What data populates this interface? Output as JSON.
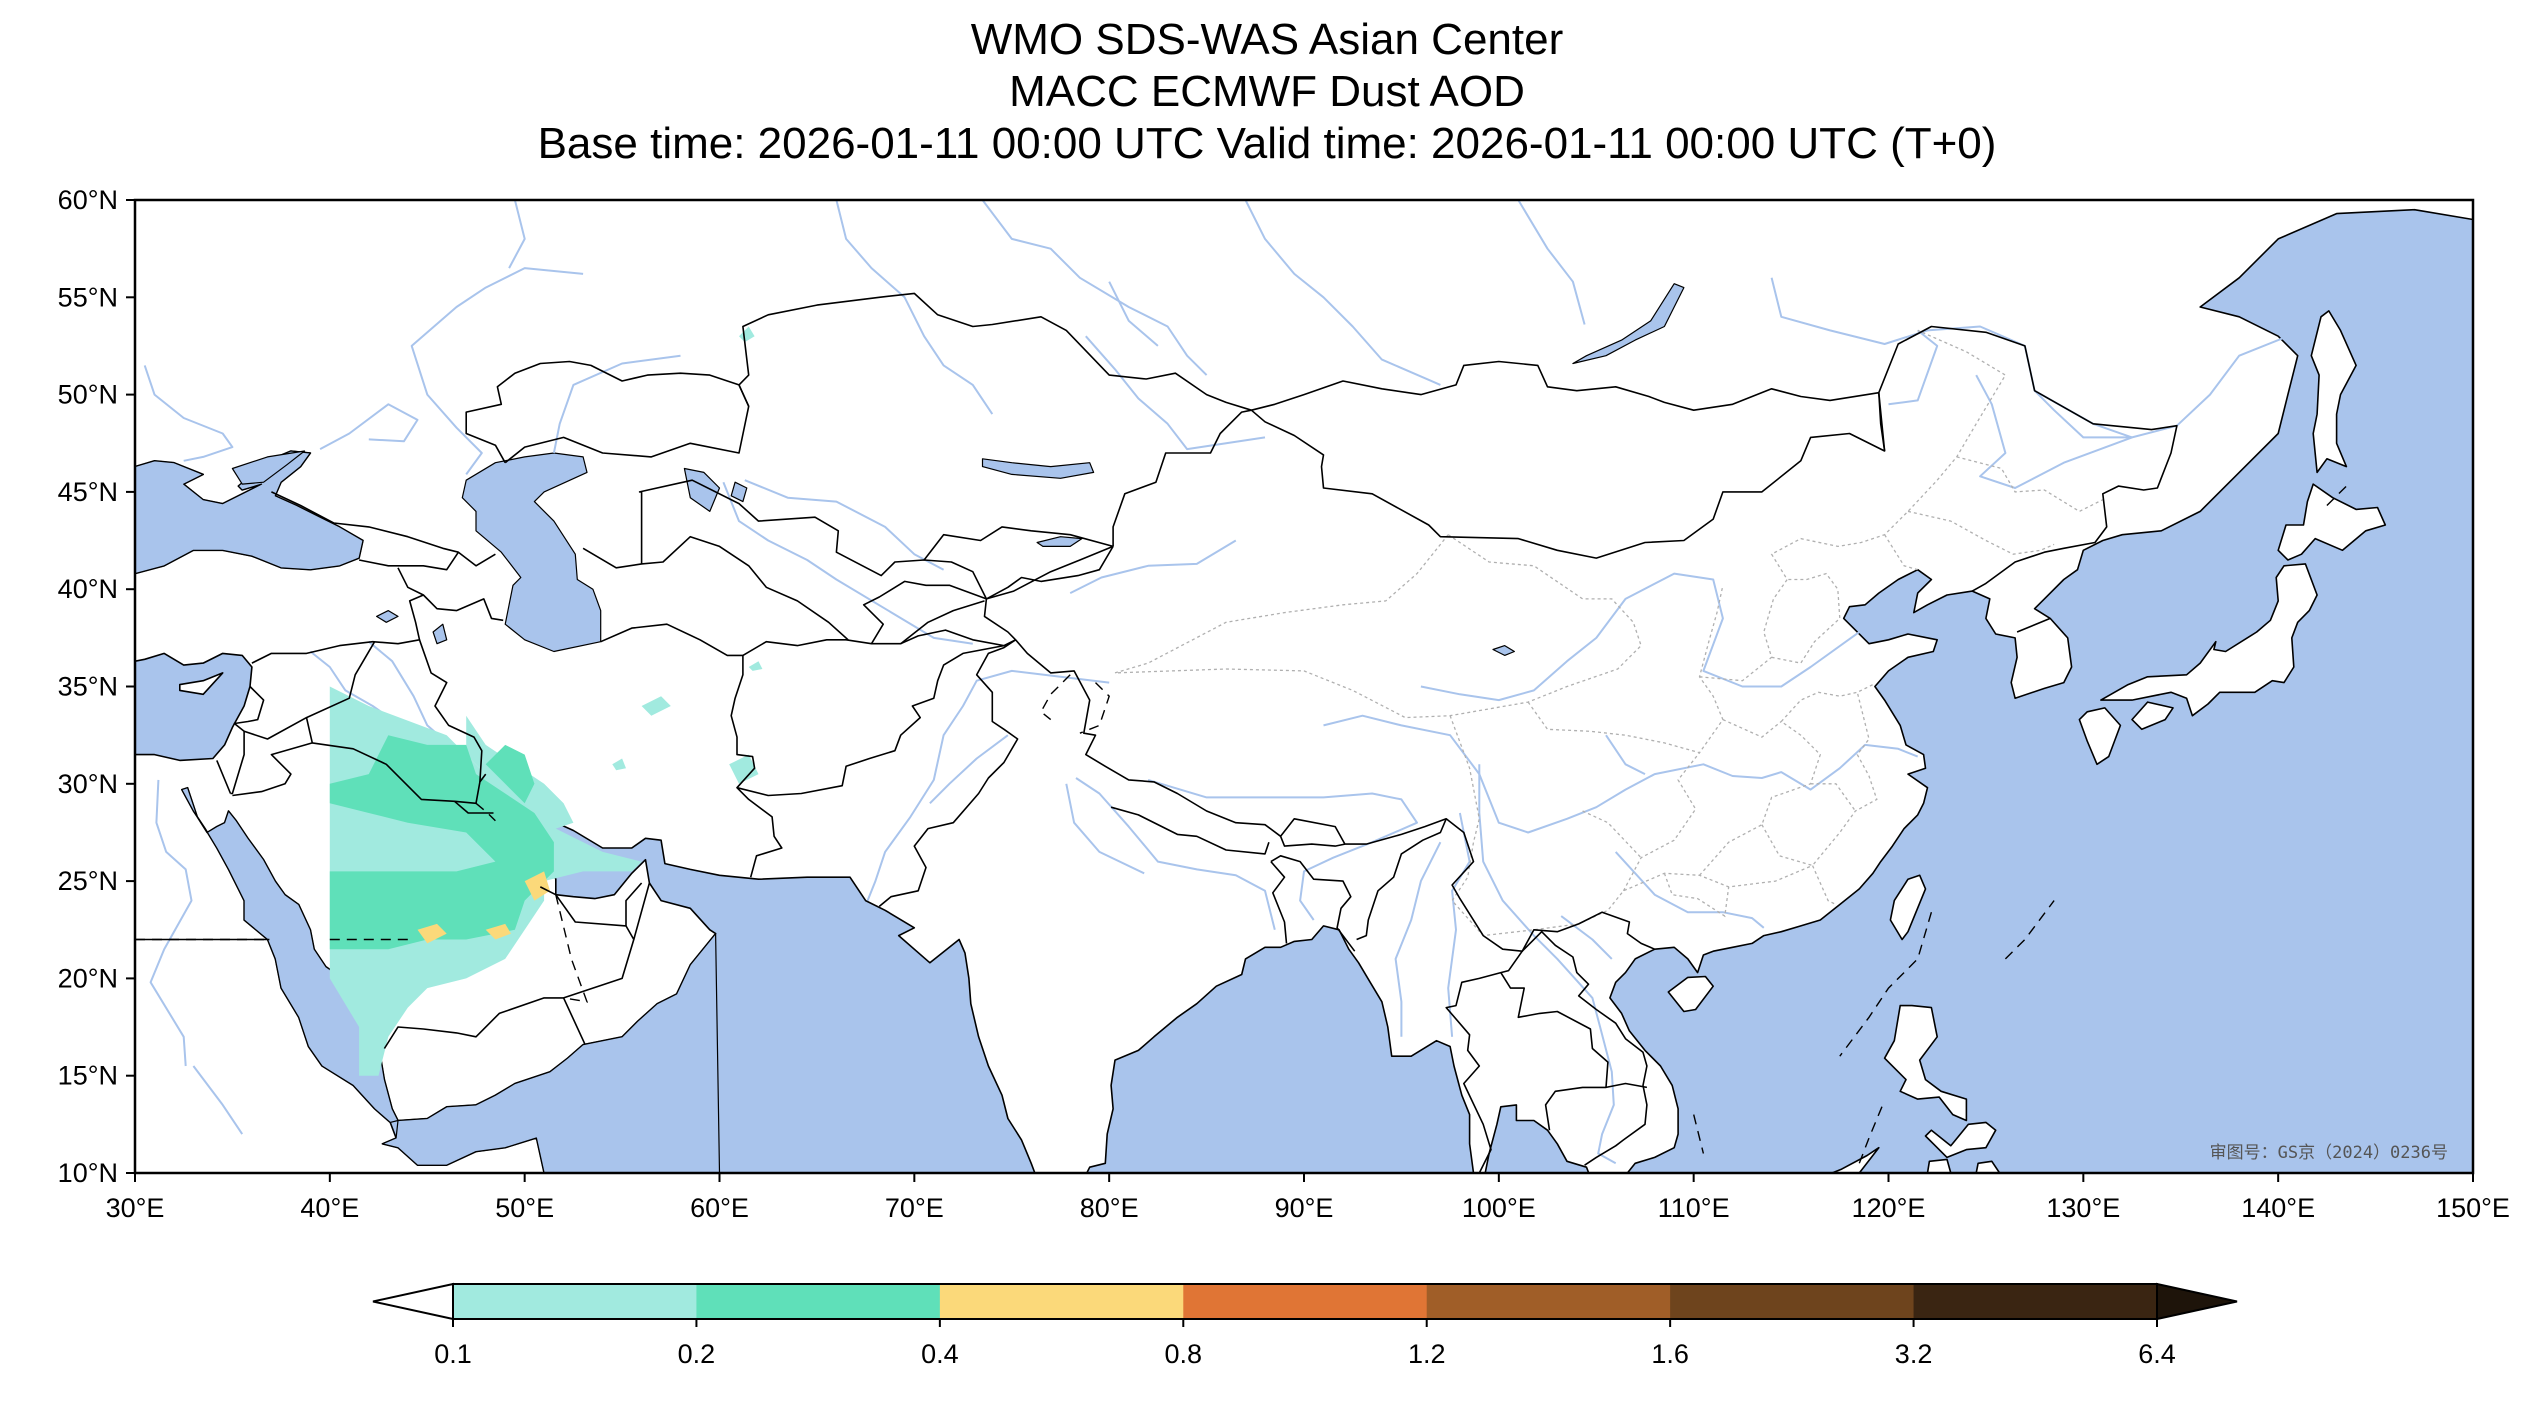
{
  "title": {
    "line1": "WMO SDS-WAS Asian Center",
    "line2": "MACC ECMWF Dust AOD",
    "line3": "Base time: 2026-01-11 00:00 UTC Valid time: 2026-01-11 00:00 UTC (T+0)"
  },
  "map": {
    "lon_range": [
      30,
      150
    ],
    "lat_range": [
      10,
      60
    ],
    "lon_ticks": [
      {
        "value": 30,
        "label": "30°E"
      },
      {
        "value": 40,
        "label": "40°E"
      },
      {
        "value": 50,
        "label": "50°E"
      },
      {
        "value": 60,
        "label": "60°E"
      },
      {
        "value": 70,
        "label": "70°E"
      },
      {
        "value": 80,
        "label": "80°E"
      },
      {
        "value": 90,
        "label": "90°E"
      },
      {
        "value": 100,
        "label": "100°E"
      },
      {
        "value": 110,
        "label": "110°E"
      },
      {
        "value": 120,
        "label": "120°E"
      },
      {
        "value": 130,
        "label": "130°E"
      },
      {
        "value": 140,
        "label": "140°E"
      },
      {
        "value": 150,
        "label": "150°E"
      }
    ],
    "lat_ticks": [
      {
        "value": 60,
        "label": "60°N"
      },
      {
        "value": 55,
        "label": "55°N"
      },
      {
        "value": 50,
        "label": "50°N"
      },
      {
        "value": 45,
        "label": "45°N"
      },
      {
        "value": 40,
        "label": "40°N"
      },
      {
        "value": 35,
        "label": "35°N"
      },
      {
        "value": 30,
        "label": "30°N"
      },
      {
        "value": 25,
        "label": "25°N"
      },
      {
        "value": 20,
        "label": "20°N"
      },
      {
        "value": 15,
        "label": "15°N"
      },
      {
        "value": 10,
        "label": "10°N"
      }
    ],
    "stamp": "审图号：GS京（2024）0236号",
    "colors": {
      "ocean": "#a9c4ec",
      "land": "#ffffff",
      "border": "#000000",
      "river": "#a9c4ec",
      "province": "#b0b0b0"
    }
  },
  "colorbar": {
    "levels": [
      "0.1",
      "0.2",
      "0.4",
      "0.8",
      "1.2",
      "1.6",
      "3.2",
      "6.4"
    ],
    "colors": [
      "#a1eadf",
      "#5fe0b9",
      "#fbd97a",
      "#e07535",
      "#a05e28",
      "#6e441d",
      "#3a2512"
    ],
    "under_color": "#ffffff",
    "over_color": "#1e140a"
  },
  "dust_aod": {
    "units": "lon/lat",
    "regions": [
      {
        "level": "0.1-0.2",
        "color": "#a1eadf",
        "polygon": [
          [
            40,
            35
          ],
          [
            42,
            34
          ],
          [
            46,
            32.5
          ],
          [
            48,
            30.5
          ],
          [
            49,
            30
          ],
          [
            50,
            29
          ],
          [
            51,
            28
          ],
          [
            52,
            27.5
          ],
          [
            54,
            26.5
          ],
          [
            56,
            26
          ],
          [
            55.5,
            25.5
          ],
          [
            53,
            25.5
          ],
          [
            51,
            25
          ],
          [
            51,
            24
          ],
          [
            50,
            22.5
          ],
          [
            49,
            21
          ],
          [
            47,
            20
          ],
          [
            45,
            19.5
          ],
          [
            44,
            18.5
          ],
          [
            43,
            17
          ],
          [
            42.5,
            15
          ],
          [
            41.5,
            15
          ],
          [
            41.5,
            17.5
          ],
          [
            40,
            20
          ],
          [
            40,
            35
          ]
        ]
      },
      {
        "level": "0.1-0.2",
        "color": "#a1eadf",
        "polygon": [
          [
            47,
            33.5
          ],
          [
            48,
            32
          ],
          [
            49.5,
            31
          ],
          [
            51,
            30
          ],
          [
            52,
            29
          ],
          [
            52.5,
            28
          ],
          [
            51,
            27.5
          ],
          [
            50,
            28.5
          ],
          [
            48.5,
            30
          ],
          [
            47,
            31.5
          ],
          [
            47,
            33.5
          ]
        ]
      },
      {
        "level": "0.1-0.2",
        "color": "#a1eadf",
        "polygon": [
          [
            56,
            34
          ],
          [
            57,
            34.5
          ],
          [
            57.5,
            34
          ],
          [
            56.5,
            33.5
          ],
          [
            56,
            34
          ]
        ]
      },
      {
        "level": "0.1-0.2",
        "color": "#a1eadf",
        "polygon": [
          [
            60.5,
            31
          ],
          [
            61.5,
            31.5
          ],
          [
            62,
            30.5
          ],
          [
            61,
            30
          ],
          [
            60.5,
            31
          ]
        ]
      },
      {
        "level": "0.1-0.2",
        "color": "#a1eadf",
        "polygon": [
          [
            54.5,
            31
          ],
          [
            55,
            31.3
          ],
          [
            55.2,
            30.8
          ],
          [
            54.7,
            30.7
          ],
          [
            54.5,
            31
          ]
        ]
      },
      {
        "level": "0.1-0.2",
        "color": "#a1eadf",
        "polygon": [
          [
            61.5,
            36
          ],
          [
            62,
            36.3
          ],
          [
            62.2,
            35.9
          ],
          [
            61.7,
            35.8
          ],
          [
            61.5,
            36
          ]
        ]
      },
      {
        "level": "0.1-0.2",
        "color": "#a1eadf",
        "polygon": [
          [
            61,
            53
          ],
          [
            61.5,
            53.5
          ],
          [
            61.8,
            53
          ],
          [
            61.3,
            52.7
          ],
          [
            61,
            53
          ]
        ]
      },
      {
        "level": "0.2-0.4",
        "color": "#5fe0b9",
        "polygon": [
          [
            43,
            32.5
          ],
          [
            45,
            32
          ],
          [
            47,
            32
          ],
          [
            47.5,
            30.5
          ],
          [
            49,
            29.5
          ],
          [
            50.5,
            28.5
          ],
          [
            51.5,
            27
          ],
          [
            51.5,
            25.5
          ],
          [
            50,
            24
          ],
          [
            49.5,
            22.5
          ],
          [
            47,
            22
          ],
          [
            45,
            22
          ],
          [
            43,
            21.5
          ],
          [
            40,
            21.5
          ],
          [
            40,
            25.5
          ],
          [
            43,
            25.5
          ],
          [
            46.5,
            25.5
          ],
          [
            48.5,
            26
          ],
          [
            47,
            27.5
          ],
          [
            44,
            28
          ],
          [
            42,
            28.5
          ],
          [
            40,
            29
          ],
          [
            40,
            30
          ],
          [
            42,
            30.5
          ],
          [
            43,
            32.5
          ]
        ]
      },
      {
        "level": "0.2-0.4",
        "color": "#5fe0b9",
        "polygon": [
          [
            48,
            31
          ],
          [
            49,
            32
          ],
          [
            50,
            31.5
          ],
          [
            50.5,
            30
          ],
          [
            50,
            29
          ],
          [
            49,
            30
          ],
          [
            48,
            31
          ]
        ]
      },
      {
        "level": "0.4-0.8",
        "color": "#fbd97a",
        "polygon": [
          [
            50,
            25
          ],
          [
            51,
            25.5
          ],
          [
            51.3,
            24.5
          ],
          [
            50.5,
            24
          ],
          [
            50,
            25
          ]
        ]
      },
      {
        "level": "0.4-0.8",
        "color": "#fbd97a",
        "polygon": [
          [
            44.5,
            22.5
          ],
          [
            45.5,
            22.8
          ],
          [
            46,
            22.3
          ],
          [
            45,
            21.8
          ],
          [
            44.5,
            22.5
          ]
        ]
      },
      {
        "level": "0.4-0.8",
        "color": "#fbd97a",
        "polygon": [
          [
            48,
            22.5
          ],
          [
            49,
            22.8
          ],
          [
            49.3,
            22.3
          ],
          [
            48.5,
            22
          ],
          [
            48,
            22.5
          ]
        ]
      }
    ]
  }
}
